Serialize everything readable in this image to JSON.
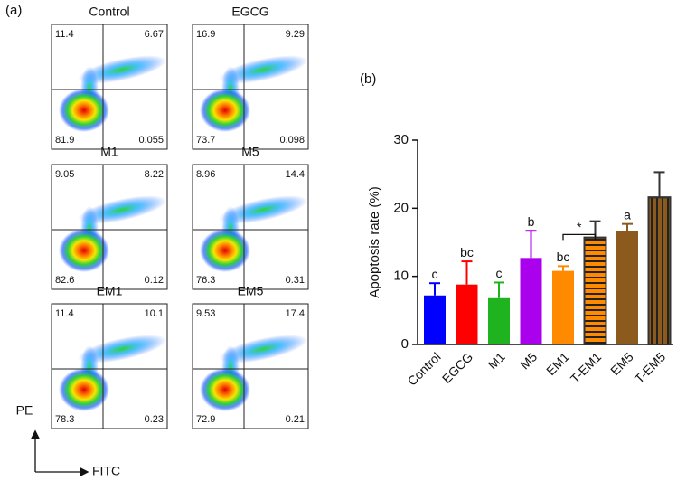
{
  "panel_a": {
    "label": "(a)",
    "x_label": "FITC",
    "y_label": "PE",
    "plots": [
      {
        "title": "Control",
        "ul": 11.4,
        "ur": 6.67,
        "ll": 81.9,
        "lr": 0.055
      },
      {
        "title": "EGCG",
        "ul": 16.9,
        "ur": 9.29,
        "ll": 73.7,
        "lr": 0.098
      },
      {
        "title": "M1",
        "ul": 9.05,
        "ur": 8.22,
        "ll": 82.6,
        "lr": 0.12
      },
      {
        "title": "M5",
        "ul": 8.96,
        "ur": 14.4,
        "ll": 76.3,
        "lr": 0.31
      },
      {
        "title": "EM1",
        "ul": 11.4,
        "ur": 10.1,
        "ll": 78.3,
        "lr": 0.23
      },
      {
        "title": "EM5",
        "ul": 9.53,
        "ur": 17.4,
        "ll": 72.9,
        "lr": 0.21
      }
    ]
  },
  "chart_data": {
    "type": "bar",
    "panel_label": "(b)",
    "y_label": "Apoptosis rate (%)",
    "categories": [
      "Control",
      "EGCG",
      "M1",
      "M5",
      "EM1",
      "T-EM1",
      "EM5",
      "T-EM5"
    ],
    "values": [
      7.2,
      8.8,
      6.8,
      12.7,
      10.8,
      15.7,
      16.6,
      21.6
    ],
    "errors": [
      1.8,
      3.4,
      2.3,
      4.0,
      0.7,
      2.4,
      1.1,
      3.7
    ],
    "letters": [
      "c",
      "bc",
      "c",
      "b",
      "bc",
      null,
      "a",
      null
    ],
    "colors": [
      "#0000ff",
      "#ff0000",
      "#1fb41f",
      "#aa00ee",
      "#ff8a00",
      "#ff8a00",
      "#8c5a1c",
      "#8c5a1c"
    ],
    "patterns": [
      "solid",
      "solid",
      "solid",
      "solid",
      "solid",
      "horizontal-stripes",
      "solid",
      "vertical-stripes"
    ],
    "brackets": [
      {
        "text": "*",
        "from": "EM1",
        "to": "T-EM1"
      }
    ],
    "ylim": [
      0,
      30
    ],
    "yticks": [
      0,
      10,
      20,
      30
    ],
    "grid": false
  }
}
